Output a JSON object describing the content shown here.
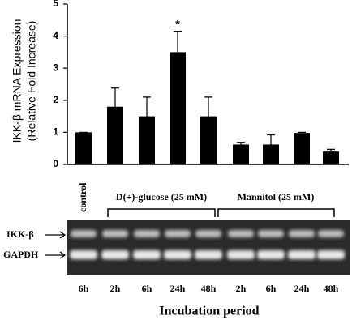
{
  "chart_data": {
    "type": "bar",
    "ylabel": [
      "IKK-β mRNA Expression",
      "(Relative Fold Increase)"
    ],
    "categories": [
      "6h",
      "2h",
      "6h",
      "24h",
      "48h",
      "2h",
      "6h",
      "24h",
      "48h"
    ],
    "values": [
      1.0,
      1.8,
      1.5,
      3.5,
      1.5,
      0.62,
      0.62,
      0.98,
      0.4
    ],
    "errors": [
      0,
      0.58,
      0.6,
      0.65,
      0.6,
      0.07,
      0.3,
      0.02,
      0.07
    ],
    "color": "#000000",
    "ylim": [
      0,
      5
    ],
    "yticks": [
      0,
      1,
      2,
      3,
      4,
      5
    ],
    "annotations": [
      {
        "text": "*"
      }
    ],
    "xlabel": "Incubation period",
    "control_label": "control",
    "groups": [
      {
        "label": "D(+)-glucose (25 mM)"
      },
      {
        "label": "Mannitol (25 mM)"
      }
    ],
    "band_labels": [
      "IKK-β",
      "GAPDH"
    ]
  }
}
